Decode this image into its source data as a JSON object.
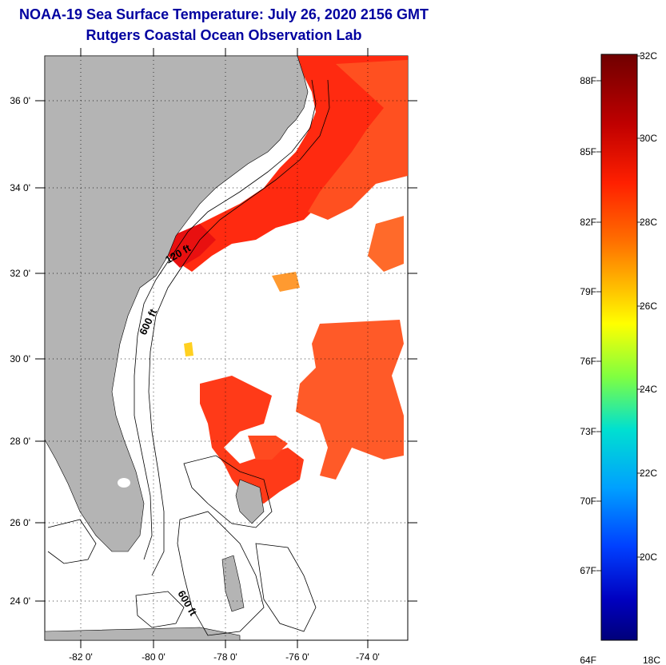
{
  "title": {
    "line1": "NOAA-19 Sea Surface Temperature:  July 26, 2020 2156 GMT",
    "line2": "Rutgers Coastal Ocean Observation Lab"
  },
  "map": {
    "lat_labels": [
      "36 0'",
      "34 0'",
      "32 0'",
      "30 0'",
      "28 0'",
      "26 0'",
      "24 0'"
    ],
    "lon_labels": [
      "-82 0'",
      "-80 0'",
      "-78 0'",
      "-76 0'",
      "-74 0'"
    ],
    "contour_labels": [
      "120 ft",
      "600 ft",
      "600 ft"
    ]
  },
  "colorbar": {
    "celsius_labels": [
      "32C",
      "30C",
      "28C",
      "26C",
      "24C",
      "22C",
      "20C",
      "18C"
    ],
    "fahrenheit_labels": [
      "88F",
      "85F",
      "82F",
      "79F",
      "76F",
      "73F",
      "70F",
      "67F",
      "64F"
    ],
    "colors": [
      "#7a0000",
      "#d00000",
      "#ff3000",
      "#ff8000",
      "#ffc000",
      "#ffff00",
      "#80ff40",
      "#00e0c0",
      "#00a0ff",
      "#0040ff",
      "#0000c0",
      "#000080"
    ]
  }
}
